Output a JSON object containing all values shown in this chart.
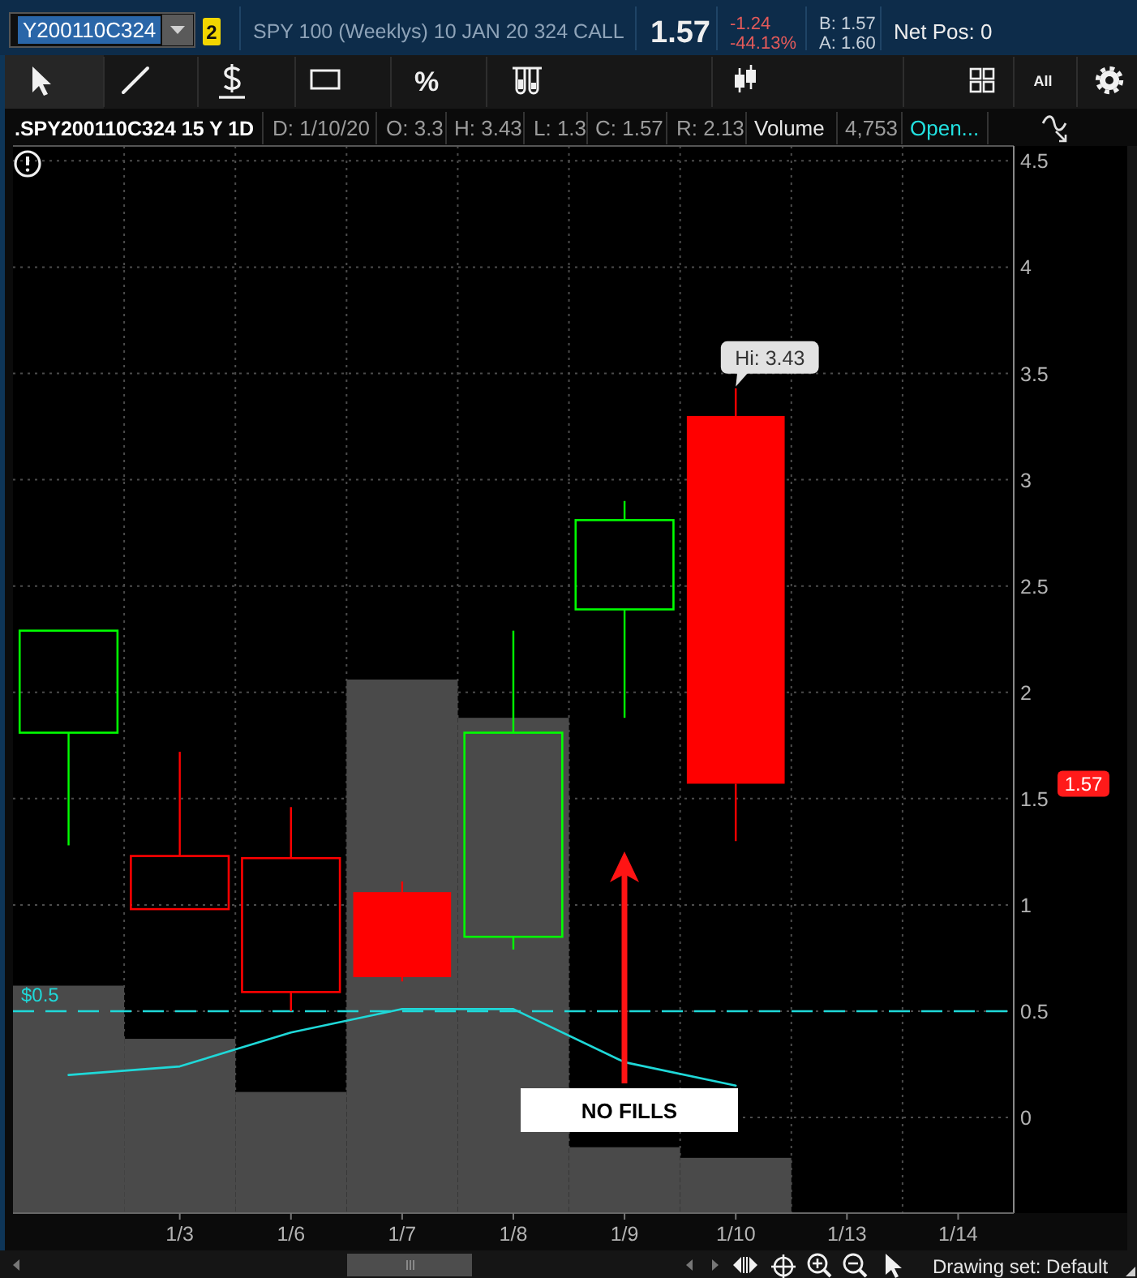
{
  "chart_data": {
    "type": "candlestick",
    "title": ".SPY200110C324 15 Y 1D",
    "categories": [
      null,
      "1/3",
      "1/6",
      "1/7",
      "1/8",
      "1/9",
      "1/10",
      "1/13",
      "1/14"
    ],
    "ohlc": [
      [
        1.81,
        2.29,
        1.28,
        2.29
      ],
      [
        0.98,
        1.72,
        0.98,
        1.23
      ],
      [
        0.59,
        1.46,
        0.5,
        1.22
      ],
      [
        1.06,
        1.11,
        0.64,
        0.66
      ],
      [
        0.85,
        2.29,
        0.79,
        1.81
      ],
      [
        2.39,
        2.9,
        1.88,
        2.81
      ],
      [
        3.3,
        3.43,
        1.3,
        1.57
      ],
      null,
      null
    ],
    "colors": [
      "#00ff00",
      "#ff0000",
      "#ff0000",
      "#ff0000",
      "#00ff00",
      "#00ff00",
      "#ff0000",
      null,
      null
    ],
    "series": [
      {
        "type": "bar",
        "color": "#4a4a4a",
        "base": [
          -0.45,
          -0.45,
          -0.45,
          -0.45,
          -0.45,
          -0.45,
          -0.45,
          null,
          null
        ],
        "values": [
          1.07,
          0.82,
          0.57,
          2.51,
          2.33,
          0.31,
          0.26,
          null,
          null
        ]
      },
      {
        "type": "line",
        "color": "#1fd8d8",
        "values": [
          0.2,
          0.24,
          0.4,
          0.51,
          0.51,
          0.26,
          0.15,
          null,
          null
        ]
      }
    ],
    "ylim": [
      -0.45,
      4.57
    ],
    "yticks": [
      0,
      0.5,
      1,
      1.5,
      2,
      2.5,
      3,
      3.5,
      4,
      4.5
    ],
    "grid": true,
    "ref_lines": [
      {
        "axis": "y",
        "value": 0.5,
        "label": "$0.5",
        "color": "#1fd8d8",
        "line_style": "dashed"
      }
    ],
    "annotations": [
      "Y200110C324",
      "2",
      "SPY 100 (Weeklys) 10 JAN 20 324 CALL",
      "1.57",
      "-1.24",
      "-44.13%",
      "B: 1.57",
      "A: 1.60",
      "Net Pos: 0",
      "%",
      "All",
      "D: 1/10/20",
      "O: 3.3",
      "H: 3.43",
      "L: 1.3",
      "C: 1.57",
      "R: 2.13",
      "Volume",
      "4,753",
      "Open...",
      "Drawing set: Default",
      "Hi: 3.43",
      "NO FILLS",
      "1.57"
    ]
  }
}
